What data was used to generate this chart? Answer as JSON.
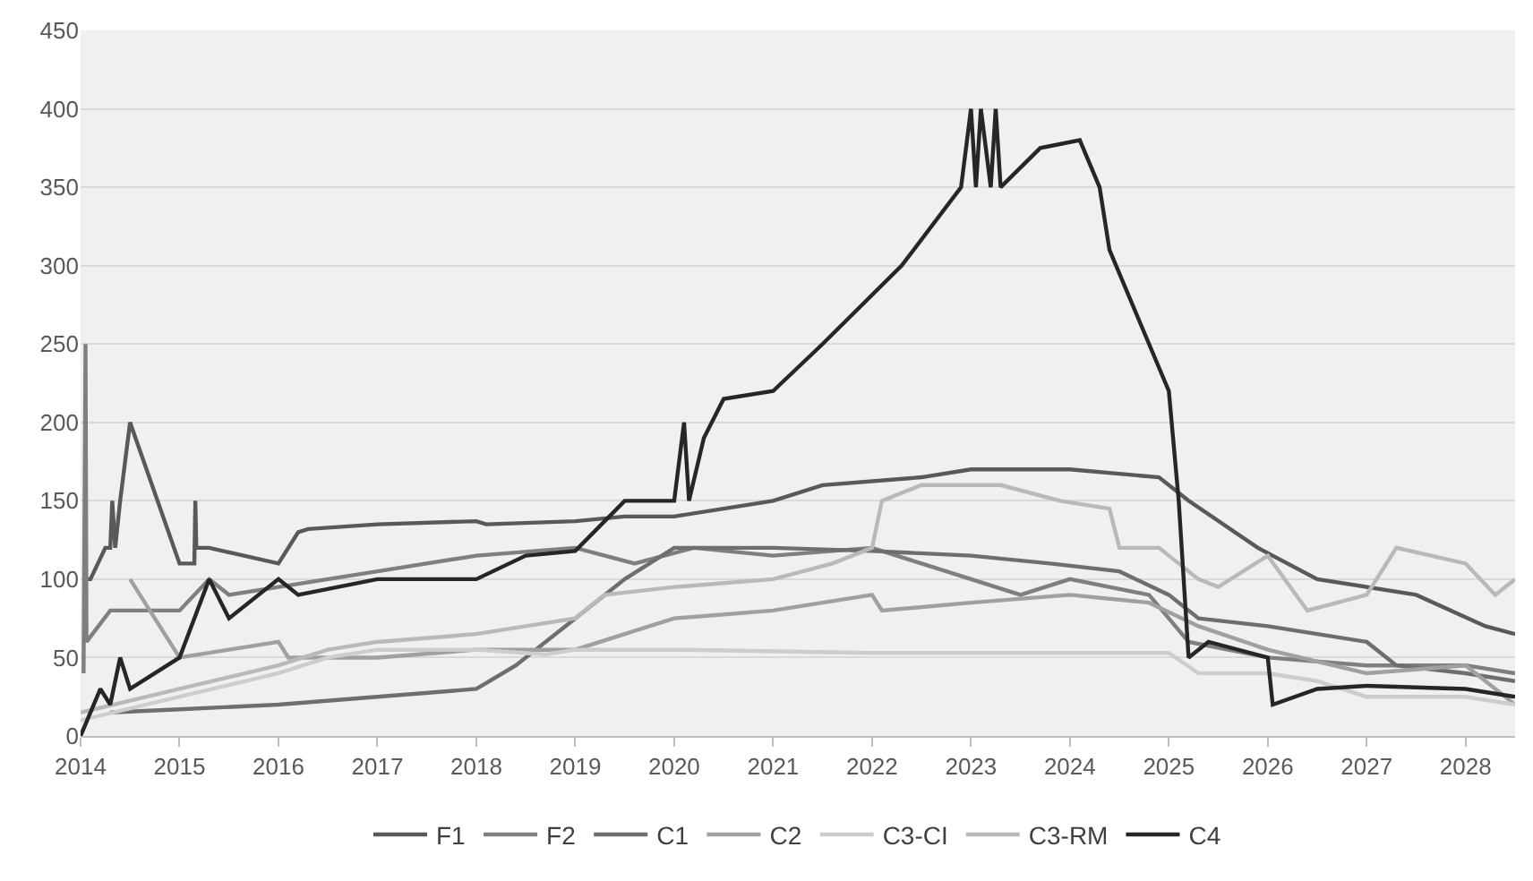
{
  "chart_data": {
    "type": "line",
    "xlim": [
      2014,
      2028.5
    ],
    "xticks": [
      2014,
      2015,
      2016,
      2017,
      2018,
      2019,
      2020,
      2021,
      2022,
      2023,
      2024,
      2025,
      2026,
      2027,
      2028
    ],
    "ylim": [
      0,
      450
    ],
    "yticks": [
      0,
      50,
      100,
      150,
      200,
      250,
      300,
      350,
      400,
      450
    ],
    "grid": "y",
    "legend": "bottom",
    "marker": "none",
    "line_style": "solid",
    "series": [
      {
        "name": "F1",
        "color": "#595959",
        "x": [
          2014.05,
          2014.1,
          2014.25,
          2014.3,
          2014.32,
          2014.35,
          2014.4,
          2014.5,
          2015.0,
          2015.15,
          2015.16,
          2015.17,
          2015.3,
          2016.0,
          2016.2,
          2016.3,
          2017.0,
          2018.0,
          2018.1,
          2019.0,
          2019.5,
          2020.0,
          2020.5,
          2021.0,
          2021.5,
          2022.5,
          2023.0,
          2024.0,
          2024.9,
          2025.2,
          2025.9,
          2026.5,
          2027.5,
          2028.2,
          2028.5
        ],
        "values": [
          100,
          100,
          120,
          120,
          150,
          120,
          150,
          200,
          110,
          110,
          150,
          120,
          120,
          110,
          130,
          132,
          135,
          137,
          135,
          137,
          140,
          140,
          145,
          150,
          160,
          165,
          170,
          170,
          165,
          150,
          120,
          100,
          90,
          70,
          65
        ]
      },
      {
        "name": "F2",
        "color": "#7f7f7f",
        "x": [
          2014.03,
          2014.05,
          2014.06,
          2014.3,
          2015.0,
          2015.3,
          2015.5,
          2016.0,
          2016.5,
          2017.0,
          2018.0,
          2019.0,
          2019.6,
          2020.2,
          2021.0,
          2022.0,
          2022.5,
          2023.0,
          2023.5,
          2024.0,
          2024.8,
          2025.2,
          2025.6,
          2026.0,
          2027.0,
          2028.0,
          2028.5
        ],
        "values": [
          40,
          250,
          60,
          80,
          80,
          100,
          90,
          95,
          100,
          105,
          115,
          120,
          110,
          120,
          115,
          120,
          110,
          100,
          90,
          100,
          90,
          60,
          55,
          50,
          45,
          45,
          40
        ]
      },
      {
        "name": "C1",
        "color": "#6e6e6e",
        "x": [
          2014.3,
          2015.0,
          2016.0,
          2017.0,
          2018.0,
          2018.4,
          2019.0,
          2019.5,
          2020.0,
          2021.0,
          2022.0,
          2023.0,
          2023.8,
          2024.5,
          2025.0,
          2025.3,
          2026.0,
          2026.5,
          2027.0,
          2027.3,
          2028.0,
          2028.5
        ],
        "values": [
          15,
          17,
          20,
          25,
          30,
          45,
          75,
          100,
          120,
          120,
          118,
          115,
          110,
          105,
          90,
          75,
          70,
          65,
          60,
          45,
          40,
          35
        ]
      },
      {
        "name": "C2",
        "color": "#a0a0a0",
        "x": [
          2014.5,
          2015.0,
          2015.5,
          2016.0,
          2016.1,
          2017.0,
          2018.0,
          2019.0,
          2019.5,
          2020.0,
          2021.0,
          2022.0,
          2022.1,
          2023.0,
          2024.0,
          2024.8,
          2025.3,
          2026.0,
          2027.0,
          2028.0,
          2028.5
        ],
        "values": [
          100,
          50,
          55,
          60,
          50,
          50,
          55,
          55,
          65,
          75,
          80,
          90,
          80,
          85,
          90,
          85,
          70,
          55,
          40,
          45,
          20
        ]
      },
      {
        "name": "C3-CI",
        "color": "#cdcdcd",
        "x": [
          2014.0,
          2015.0,
          2016.0,
          2016.5,
          2017.0,
          2018.0,
          2018.7,
          2019.0,
          2020.0,
          2022.0,
          2024.0,
          2025.0,
          2025.3,
          2026.0,
          2026.5,
          2027.0,
          2028.0,
          2028.5
        ],
        "values": [
          10,
          25,
          40,
          50,
          55,
          55,
          52,
          55,
          55,
          53,
          53,
          53,
          40,
          40,
          35,
          25,
          25,
          20
        ]
      },
      {
        "name": "C3-RM",
        "color": "#b9b9b9",
        "x": [
          2014.0,
          2015.0,
          2016.0,
          2016.5,
          2017.0,
          2018.0,
          2018.5,
          2019.0,
          2019.3,
          2020.0,
          2021.0,
          2021.6,
          2022.0,
          2022.1,
          2022.5,
          2023.3,
          2023.9,
          2024.4,
          2024.5,
          2024.9,
          2025.3,
          2025.5,
          2026.0,
          2026.4,
          2027.0,
          2027.3,
          2028.0,
          2028.3,
          2028.5
        ],
        "values": [
          15,
          30,
          45,
          55,
          60,
          65,
          70,
          75,
          90,
          95,
          100,
          110,
          120,
          150,
          160,
          160,
          150,
          145,
          120,
          120,
          100,
          95,
          115,
          80,
          90,
          120,
          110,
          90,
          100
        ]
      },
      {
        "name": "C4",
        "color": "#262626",
        "x": [
          2014.0,
          2014.2,
          2014.3,
          2014.4,
          2014.5,
          2015.0,
          2015.3,
          2015.5,
          2016.0,
          2016.2,
          2017.0,
          2018.0,
          2018.5,
          2019.0,
          2019.5,
          2020.0,
          2020.1,
          2020.15,
          2020.3,
          2020.5,
          2021.0,
          2021.5,
          2022.3,
          2022.9,
          2023.0,
          2023.05,
          2023.1,
          2023.2,
          2023.25,
          2023.3,
          2023.7,
          2024.1,
          2024.3,
          2024.4,
          2025.0,
          2025.1,
          2025.2,
          2025.4,
          2026.0,
          2026.05,
          2026.5,
          2027.0,
          2028.0,
          2028.5
        ],
        "values": [
          0,
          30,
          20,
          50,
          30,
          50,
          100,
          75,
          100,
          90,
          100,
          100,
          115,
          118,
          150,
          150,
          200,
          150,
          190,
          215,
          220,
          250,
          300,
          350,
          400,
          350,
          400,
          350,
          400,
          350,
          375,
          380,
          350,
          310,
          220,
          150,
          50,
          60,
          50,
          20,
          30,
          32,
          30,
          25
        ]
      }
    ]
  }
}
